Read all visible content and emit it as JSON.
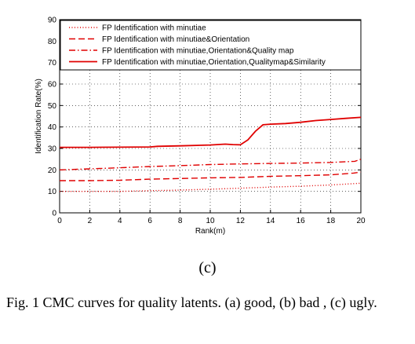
{
  "chart_data": {
    "type": "line",
    "xlabel": "Rank(m)",
    "ylabel": "Identification Rate(%)",
    "xlim": [
      0,
      20
    ],
    "ylim": [
      0,
      90
    ],
    "xticks": [
      0,
      2,
      4,
      6,
      8,
      10,
      12,
      14,
      16,
      18,
      20
    ],
    "yticks": [
      0,
      10,
      20,
      30,
      40,
      50,
      60,
      70,
      80,
      90
    ],
    "grid": true,
    "legend_position": "top-right",
    "series": [
      {
        "name": "FP Identification with minutiae",
        "color": "#e00000",
        "dash": "dotted",
        "x": [
          0,
          2,
          4,
          6,
          8,
          10,
          12,
          14,
          16,
          18,
          20
        ],
        "y": [
          10,
          10,
          10,
          10.3,
          10.6,
          11,
          11.5,
          12,
          12.4,
          13,
          13.8
        ]
      },
      {
        "name": "FP Identification with minutiae&Orientation",
        "color": "#e00000",
        "dash": "dashed",
        "x": [
          0,
          2,
          4,
          6,
          8,
          10,
          12,
          14,
          16,
          18,
          19.5,
          20
        ],
        "y": [
          15,
          15,
          15.2,
          15.7,
          16,
          16.3,
          16.5,
          17,
          17.3,
          17.7,
          18.5,
          19
        ]
      },
      {
        "name": "FP Identification with minutiae,Orientation&Quality map",
        "color": "#e00000",
        "dash": "dashdot",
        "x": [
          0,
          2,
          4,
          6,
          8,
          10,
          12,
          14,
          16,
          18,
          19.6,
          20
        ],
        "y": [
          20,
          20.5,
          21,
          21.6,
          22,
          22.5,
          22.8,
          23,
          23.2,
          23.5,
          24,
          25
        ]
      },
      {
        "name": "FP Identification with minutiae,Orientation,Qualitymap&Similarity",
        "color": "#e00000",
        "dash": "solid",
        "x": [
          0,
          2,
          4,
          6,
          6.5,
          8,
          10,
          11,
          11.5,
          12,
          12.5,
          13,
          13.5,
          14,
          15,
          16,
          17,
          18,
          19,
          20
        ],
        "y": [
          30.5,
          30.5,
          30.6,
          30.7,
          31,
          31.2,
          31.6,
          32,
          31.8,
          31.7,
          34,
          38,
          41,
          41.3,
          41.6,
          42.2,
          43,
          43.5,
          44,
          44.5
        ]
      }
    ]
  },
  "sub_label": "(c)",
  "caption": "Fig. 1 CMC curves for quality latents. (a) good, (b) bad , (c) ugly."
}
